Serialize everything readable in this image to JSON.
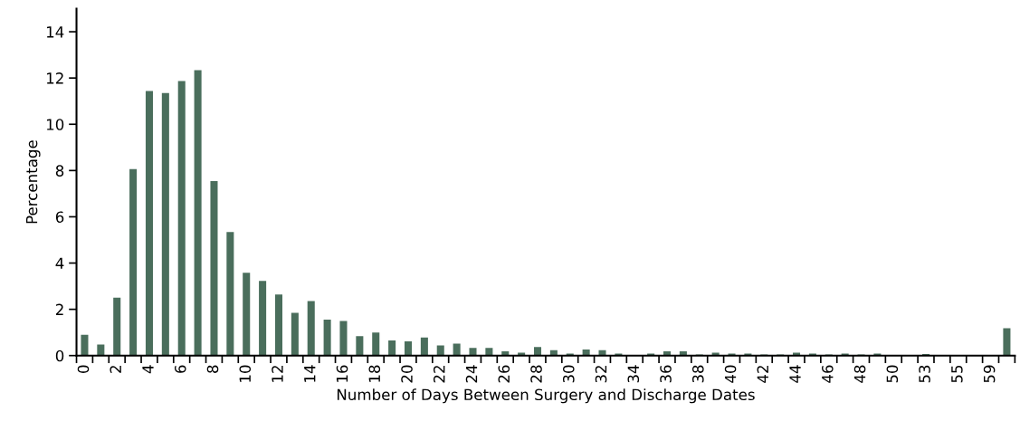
{
  "chart_data": {
    "type": "bar",
    "xlabel": "Number of Days Between Surgery and Discharge Dates",
    "ylabel": "Percentage",
    "categories": [
      "0",
      null,
      "2",
      null,
      "4",
      null,
      "6",
      null,
      "8",
      null,
      "10",
      null,
      "12",
      null,
      "14",
      null,
      "16",
      null,
      "18",
      null,
      "20",
      null,
      "22",
      null,
      "24",
      null,
      "26",
      null,
      "28",
      null,
      "30",
      null,
      "32",
      null,
      "34",
      null,
      "36",
      null,
      "38",
      null,
      "40",
      null,
      "42",
      null,
      "44",
      null,
      "46",
      null,
      "48",
      null,
      "50",
      null,
      "53",
      null,
      "55",
      null,
      "59",
      null
    ],
    "values": [
      0.9,
      0.48,
      2.5,
      8.06,
      11.44,
      11.35,
      11.87,
      12.34,
      7.54,
      5.34,
      3.58,
      3.23,
      2.64,
      1.85,
      2.36,
      1.55,
      1.5,
      0.84,
      1.0,
      0.65,
      0.61,
      0.78,
      0.44,
      0.52,
      0.33,
      0.33,
      0.18,
      0.13,
      0.37,
      0.23,
      0.09,
      0.26,
      0.23,
      0.09,
      0.03,
      0.09,
      0.18,
      0.18,
      0.05,
      0.13,
      0.09,
      0.09,
      0.05,
      0.05,
      0.13,
      0.09,
      0.05,
      0.09,
      0.05,
      0.09,
      0.01,
      0.01,
      0.07,
      0.01,
      0.01,
      0.01,
      0.01,
      1.18
    ],
    "color": "#4a6e5c",
    "ylim": [
      0,
      15
    ],
    "yticks": [
      0,
      2,
      4,
      6,
      8,
      10,
      12,
      14
    ],
    "grid": false
  }
}
